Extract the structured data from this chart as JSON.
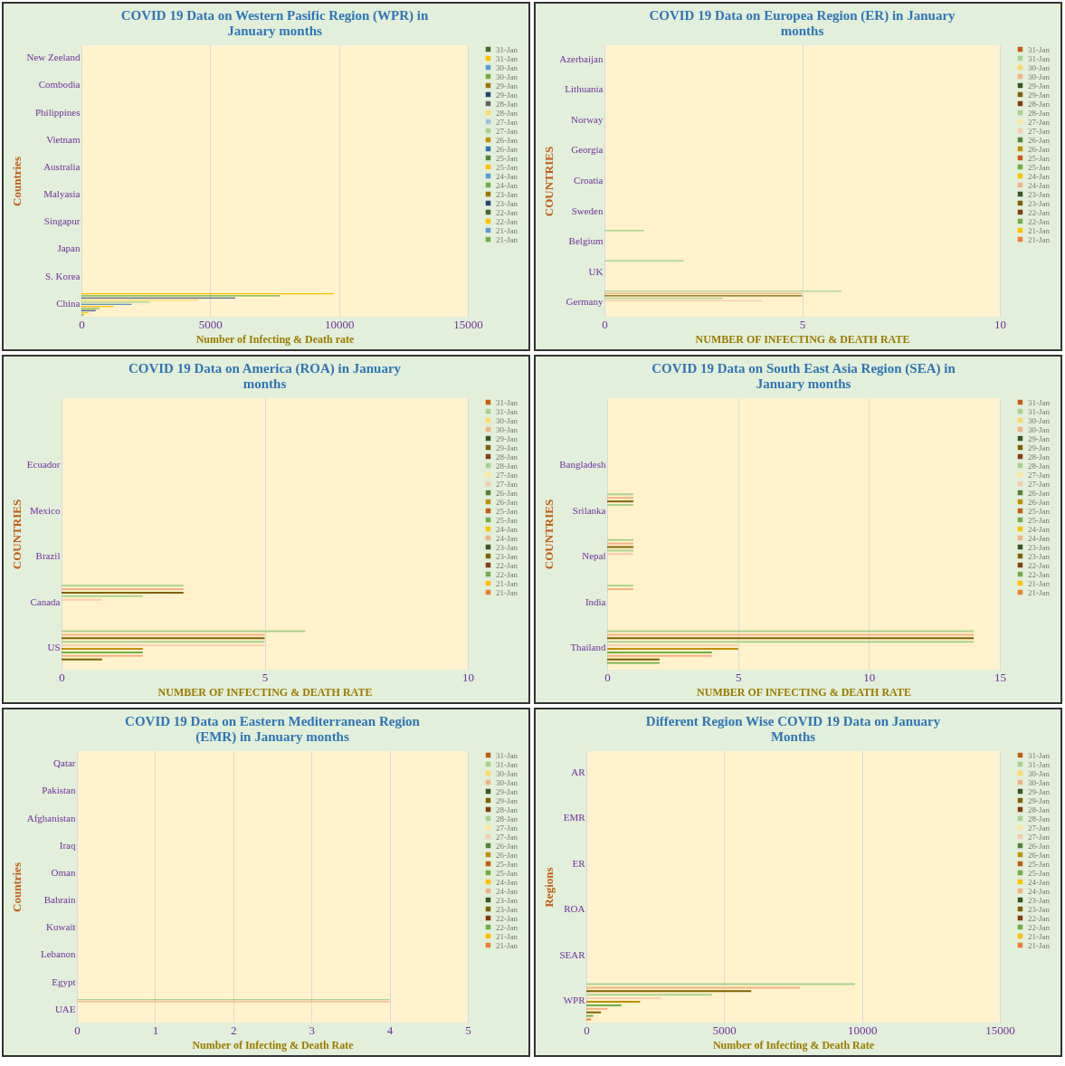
{
  "chart_data": [
    {
      "type": "bar",
      "orientation": "horizontal",
      "title": "COVID 19 Data on Western Pasific Region (WPR) in January months",
      "xlabel": "Number of Infecting & Death rate",
      "ylabel": "Countries",
      "categories": [
        "New Zeeland",
        "Combodia",
        "Philippines",
        "Vietnam",
        "Australia",
        "Malyasia",
        "Singapur",
        "Japan",
        "S. Korea",
        "China"
      ],
      "xlim": [
        0,
        15000
      ],
      "xticks": [
        0,
        5000,
        10000,
        15000
      ],
      "grid": "x",
      "legend": "right",
      "series": [
        {
          "name": "21-Jan",
          "color": "#70ad47",
          "values": [
            0,
            0,
            0,
            0,
            0,
            0,
            0,
            0,
            0,
            100
          ]
        },
        {
          "name": "21-Jan",
          "color": "#5b9bd5",
          "values": [
            0,
            0,
            0,
            0,
            0,
            0,
            0,
            0,
            0,
            0
          ]
        },
        {
          "name": "22-Jan",
          "color": "#ffc000",
          "values": [
            0,
            0,
            0,
            0,
            0,
            0,
            0,
            0,
            0,
            250
          ]
        },
        {
          "name": "22-Jan",
          "color": "#43682b",
          "values": [
            0,
            0,
            0,
            0,
            0,
            0,
            0,
            0,
            0,
            0
          ]
        },
        {
          "name": "23-Jan",
          "color": "#264478",
          "values": [
            0,
            0,
            0,
            0,
            0,
            0,
            0,
            0,
            0,
            550
          ]
        },
        {
          "name": "23-Jan",
          "color": "#997300",
          "values": [
            0,
            0,
            0,
            0,
            0,
            0,
            0,
            0,
            0,
            0
          ]
        },
        {
          "name": "24-Jan",
          "color": "#70ad47",
          "values": [
            0,
            0,
            0,
            0,
            0,
            0,
            0,
            0,
            0,
            700
          ]
        },
        {
          "name": "24-Jan",
          "color": "#5b9bd5",
          "values": [
            0,
            0,
            0,
            0,
            0,
            0,
            0,
            0,
            0,
            0
          ]
        },
        {
          "name": "25-Jan",
          "color": "#ffc000",
          "values": [
            0,
            0,
            0,
            0,
            0,
            0,
            0,
            0,
            0,
            1250
          ]
        },
        {
          "name": "25-Jan",
          "color": "#548235",
          "values": [
            0,
            0,
            0,
            0,
            0,
            0,
            0,
            0,
            0,
            0
          ]
        },
        {
          "name": "26-Jan",
          "color": "#2e75b6",
          "values": [
            0,
            0,
            0,
            0,
            0,
            0,
            0,
            0,
            0,
            1950
          ]
        },
        {
          "name": "26-Jan",
          "color": "#bf8f00",
          "values": [
            0,
            0,
            0,
            0,
            0,
            0,
            0,
            0,
            0,
            0
          ]
        },
        {
          "name": "27-Jan",
          "color": "#a9d18e",
          "values": [
            0,
            0,
            0,
            0,
            0,
            0,
            0,
            0,
            0,
            2650
          ]
        },
        {
          "name": "27-Jan",
          "color": "#9dc3e6",
          "values": [
            0,
            0,
            0,
            0,
            0,
            0,
            0,
            0,
            0,
            0
          ]
        },
        {
          "name": "28-Jan",
          "color": "#ffd966",
          "values": [
            0,
            0,
            0,
            0,
            0,
            0,
            0,
            0,
            0,
            4530
          ]
        },
        {
          "name": "28-Jan",
          "color": "#636363",
          "values": [
            0,
            0,
            0,
            0,
            0,
            0,
            0,
            0,
            0,
            0
          ]
        },
        {
          "name": "29-Jan",
          "color": "#264478",
          "values": [
            0,
            0,
            0,
            0,
            0,
            0,
            0,
            0,
            0,
            5970
          ]
        },
        {
          "name": "29-Jan",
          "color": "#997300",
          "values": [
            0,
            0,
            0,
            0,
            0,
            0,
            0,
            0,
            0,
            0
          ]
        },
        {
          "name": "30-Jan",
          "color": "#70ad47",
          "values": [
            0,
            0,
            0,
            0,
            0,
            0,
            0,
            0,
            0,
            7700
          ]
        },
        {
          "name": "30-Jan",
          "color": "#5b9bd5",
          "values": [
            0,
            0,
            0,
            0,
            0,
            0,
            0,
            0,
            0,
            0
          ]
        },
        {
          "name": "31-Jan",
          "color": "#ffc000",
          "values": [
            0,
            0,
            0,
            0,
            0,
            0,
            0,
            0,
            0,
            9800
          ]
        },
        {
          "name": "31-Jan",
          "color": "#43682b",
          "values": [
            0,
            0,
            0,
            0,
            0,
            0,
            0,
            0,
            0,
            0
          ]
        }
      ]
    },
    {
      "type": "bar",
      "orientation": "horizontal",
      "title": "COVID 19 Data on Europea Region (ER) in January months",
      "xlabel": "NUMBER OF INFECTING & DEATH RATE",
      "ylabel": "COUNTRIES",
      "categories": [
        "Azerbaijan",
        "Lithuania",
        "Norway",
        "Georgia",
        "Croatia",
        "Sweden",
        "Belgium",
        "UK",
        "Germany"
      ],
      "xlim": [
        0,
        10
      ],
      "xticks": [
        0,
        5,
        10
      ],
      "grid": "x",
      "legend": "right",
      "series": [
        {
          "name": "21-Jan",
          "color": "#ed7d31",
          "values": [
            0,
            0,
            0,
            0,
            0,
            0,
            0,
            0,
            0
          ]
        },
        {
          "name": "21-Jan",
          "color": "#ffc000",
          "values": [
            0,
            0,
            0,
            0,
            0,
            0,
            0,
            0,
            0
          ]
        },
        {
          "name": "22-Jan",
          "color": "#70ad47",
          "values": [
            0,
            0,
            0,
            0,
            0,
            0,
            0,
            0,
            0
          ]
        },
        {
          "name": "22-Jan",
          "color": "#843c0c",
          "values": [
            0,
            0,
            0,
            0,
            0,
            0,
            0,
            0,
            0
          ]
        },
        {
          "name": "23-Jan",
          "color": "#7f6000",
          "values": [
            0,
            0,
            0,
            0,
            0,
            0,
            0,
            0,
            0
          ]
        },
        {
          "name": "23-Jan",
          "color": "#375623",
          "values": [
            0,
            0,
            0,
            0,
            0,
            0,
            0,
            0,
            0
          ]
        },
        {
          "name": "24-Jan",
          "color": "#f4b183",
          "values": [
            0,
            0,
            0,
            0,
            0,
            0,
            0,
            0,
            0
          ]
        },
        {
          "name": "24-Jan",
          "color": "#ffc000",
          "values": [
            0,
            0,
            0,
            0,
            0,
            0,
            0,
            0,
            0
          ]
        },
        {
          "name": "25-Jan",
          "color": "#70ad47",
          "values": [
            0,
            0,
            0,
            0,
            0,
            0,
            0,
            0,
            0
          ]
        },
        {
          "name": "25-Jan",
          "color": "#c55a11",
          "values": [
            0,
            0,
            0,
            0,
            0,
            0,
            0,
            0,
            0
          ]
        },
        {
          "name": "26-Jan",
          "color": "#bf8f00",
          "values": [
            0,
            0,
            0,
            0,
            0,
            0,
            0,
            0,
            0
          ]
        },
        {
          "name": "26-Jan",
          "color": "#548235",
          "values": [
            0,
            0,
            0,
            0,
            0,
            0,
            0,
            0,
            0
          ]
        },
        {
          "name": "27-Jan",
          "color": "#f8cbad",
          "values": [
            0,
            0,
            0,
            0,
            0,
            0,
            0,
            0,
            4
          ]
        },
        {
          "name": "27-Jan",
          "color": "#ffe699",
          "values": [
            0,
            0,
            0,
            0,
            0,
            0,
            0,
            0,
            0
          ]
        },
        {
          "name": "28-Jan",
          "color": "#a9d18e",
          "values": [
            0,
            0,
            0,
            0,
            0,
            0,
            0,
            0,
            3
          ]
        },
        {
          "name": "28-Jan",
          "color": "#843c0c",
          "values": [
            0,
            0,
            0,
            0,
            0,
            0,
            0,
            0,
            0
          ]
        },
        {
          "name": "29-Jan",
          "color": "#7f6000",
          "values": [
            0,
            0,
            0,
            0,
            0,
            0,
            0,
            0,
            5
          ]
        },
        {
          "name": "29-Jan",
          "color": "#375623",
          "values": [
            0,
            0,
            0,
            0,
            0,
            0,
            0,
            0,
            0
          ]
        },
        {
          "name": "30-Jan",
          "color": "#f4b183",
          "values": [
            0,
            0,
            0,
            0,
            0,
            0,
            0,
            0,
            5
          ]
        },
        {
          "name": "30-Jan",
          "color": "#ffd966",
          "values": [
            0,
            0,
            0,
            0,
            0,
            0,
            0,
            0,
            0
          ]
        },
        {
          "name": "31-Jan",
          "color": "#a9d18e",
          "values": [
            0,
            0,
            0,
            0,
            0,
            0,
            1,
            2,
            6
          ]
        },
        {
          "name": "31-Jan",
          "color": "#c55a11",
          "values": [
            0,
            0,
            0,
            0,
            0,
            0,
            0,
            0,
            0
          ]
        }
      ]
    },
    {
      "type": "bar",
      "orientation": "horizontal",
      "title": "COVID 19 Data on America  (ROA) in January months",
      "xlabel": "NUMBER OF INFECTING & DEATH RATE",
      "ylabel": "COUNTRIES",
      "categories": [
        null,
        "Ecuador",
        "Mexico",
        "Brazil",
        "Canada",
        "US"
      ],
      "xlim": [
        0,
        10
      ],
      "xticks": [
        0,
        5,
        10
      ],
      "grid": "x",
      "legend": "right",
      "series": [
        {
          "name": "21-Jan",
          "color": "#ed7d31",
          "values": [
            0,
            0,
            0,
            0,
            0,
            0
          ]
        },
        {
          "name": "21-Jan",
          "color": "#ffc000",
          "values": [
            0,
            0,
            0,
            0,
            0,
            0
          ]
        },
        {
          "name": "22-Jan",
          "color": "#70ad47",
          "values": [
            0,
            0,
            0,
            0,
            0,
            0
          ]
        },
        {
          "name": "22-Jan",
          "color": "#843c0c",
          "values": [
            0,
            0,
            0,
            0,
            0,
            0
          ]
        },
        {
          "name": "23-Jan",
          "color": "#7f6000",
          "values": [
            0,
            0,
            0,
            0,
            0,
            1
          ]
        },
        {
          "name": "23-Jan",
          "color": "#375623",
          "values": [
            0,
            0,
            0,
            0,
            0,
            0
          ]
        },
        {
          "name": "24-Jan",
          "color": "#f4b183",
          "values": [
            0,
            0,
            0,
            0,
            0,
            2
          ]
        },
        {
          "name": "24-Jan",
          "color": "#ffc000",
          "values": [
            0,
            0,
            0,
            0,
            0,
            0
          ]
        },
        {
          "name": "25-Jan",
          "color": "#70ad47",
          "values": [
            0,
            0,
            0,
            0,
            0,
            2
          ]
        },
        {
          "name": "25-Jan",
          "color": "#c55a11",
          "values": [
            0,
            0,
            0,
            0,
            0,
            0
          ]
        },
        {
          "name": "26-Jan",
          "color": "#bf8f00",
          "values": [
            0,
            0,
            0,
            0,
            0,
            2
          ]
        },
        {
          "name": "26-Jan",
          "color": "#548235",
          "values": [
            0,
            0,
            0,
            0,
            0,
            0
          ]
        },
        {
          "name": "27-Jan",
          "color": "#f8cbad",
          "values": [
            0,
            0,
            0,
            0,
            1,
            5
          ]
        },
        {
          "name": "27-Jan",
          "color": "#ffe699",
          "values": [
            0,
            0,
            0,
            0,
            0,
            0
          ]
        },
        {
          "name": "28-Jan",
          "color": "#a9d18e",
          "values": [
            0,
            0,
            0,
            0,
            2,
            5
          ]
        },
        {
          "name": "28-Jan",
          "color": "#843c0c",
          "values": [
            0,
            0,
            0,
            0,
            0,
            0
          ]
        },
        {
          "name": "29-Jan",
          "color": "#7f6000",
          "values": [
            0,
            0,
            0,
            0,
            3,
            5
          ]
        },
        {
          "name": "29-Jan",
          "color": "#375623",
          "values": [
            0,
            0,
            0,
            0,
            0,
            0
          ]
        },
        {
          "name": "30-Jan",
          "color": "#f4b183",
          "values": [
            0,
            0,
            0,
            0,
            3,
            5
          ]
        },
        {
          "name": "30-Jan",
          "color": "#ffd966",
          "values": [
            0,
            0,
            0,
            0,
            0,
            0
          ]
        },
        {
          "name": "31-Jan",
          "color": "#a9d18e",
          "values": [
            0,
            0,
            0,
            0,
            3,
            6
          ]
        },
        {
          "name": "31-Jan",
          "color": "#c55a11",
          "values": [
            0,
            0,
            0,
            0,
            0,
            0
          ]
        }
      ]
    },
    {
      "type": "bar",
      "orientation": "horizontal",
      "title": "COVID 19 Data on South East Asia Region (SEA) in January months",
      "xlabel": "NUMBER OF INFECTING & DEATH RATE",
      "ylabel": "COUNTRIES",
      "categories": [
        null,
        "Bangladesh",
        "Srilanka",
        "Nepal",
        "India",
        "Thailand"
      ],
      "xlim": [
        0,
        15
      ],
      "xticks": [
        0,
        5,
        10,
        15
      ],
      "grid": "x",
      "legend": "right",
      "series": [
        {
          "name": "21-Jan",
          "color": "#ed7d31",
          "values": [
            0,
            0,
            0,
            0,
            0,
            0
          ]
        },
        {
          "name": "21-Jan",
          "color": "#ffc000",
          "values": [
            0,
            0,
            0,
            0,
            0,
            0
          ]
        },
        {
          "name": "22-Jan",
          "color": "#70ad47",
          "values": [
            0,
            0,
            0,
            0,
            0,
            2
          ]
        },
        {
          "name": "22-Jan",
          "color": "#843c0c",
          "values": [
            0,
            0,
            0,
            0,
            0,
            0
          ]
        },
        {
          "name": "23-Jan",
          "color": "#7f6000",
          "values": [
            0,
            0,
            0,
            0,
            0,
            2
          ]
        },
        {
          "name": "23-Jan",
          "color": "#375623",
          "values": [
            0,
            0,
            0,
            0,
            0,
            0
          ]
        },
        {
          "name": "24-Jan",
          "color": "#f4b183",
          "values": [
            0,
            0,
            0,
            0,
            0,
            4
          ]
        },
        {
          "name": "24-Jan",
          "color": "#ffc000",
          "values": [
            0,
            0,
            0,
            0,
            0,
            0
          ]
        },
        {
          "name": "25-Jan",
          "color": "#70ad47",
          "values": [
            0,
            0,
            0,
            0,
            0,
            4
          ]
        },
        {
          "name": "25-Jan",
          "color": "#c55a11",
          "values": [
            0,
            0,
            0,
            0,
            0,
            0
          ]
        },
        {
          "name": "26-Jan",
          "color": "#bf8f00",
          "values": [
            0,
            0,
            0,
            0,
            0,
            5
          ]
        },
        {
          "name": "26-Jan",
          "color": "#548235",
          "values": [
            0,
            0,
            0,
            0,
            0,
            0
          ]
        },
        {
          "name": "27-Jan",
          "color": "#f8cbad",
          "values": [
            0,
            0,
            0,
            1,
            0,
            5
          ]
        },
        {
          "name": "27-Jan",
          "color": "#ffe699",
          "values": [
            0,
            0,
            0,
            0,
            0,
            0
          ]
        },
        {
          "name": "28-Jan",
          "color": "#a9d18e",
          "values": [
            0,
            0,
            1,
            1,
            0,
            14
          ]
        },
        {
          "name": "28-Jan",
          "color": "#843c0c",
          "values": [
            0,
            0,
            0,
            0,
            0,
            0
          ]
        },
        {
          "name": "29-Jan",
          "color": "#7f6000",
          "values": [
            0,
            0,
            1,
            1,
            0,
            14
          ]
        },
        {
          "name": "29-Jan",
          "color": "#375623",
          "values": [
            0,
            0,
            0,
            0,
            0,
            0
          ]
        },
        {
          "name": "30-Jan",
          "color": "#f4b183",
          "values": [
            0,
            0,
            1,
            1,
            1,
            14
          ]
        },
        {
          "name": "30-Jan",
          "color": "#ffd966",
          "values": [
            0,
            0,
            0,
            0,
            0,
            0
          ]
        },
        {
          "name": "31-Jan",
          "color": "#a9d18e",
          "values": [
            0,
            0,
            1,
            1,
            1,
            14
          ]
        },
        {
          "name": "31-Jan",
          "color": "#c55a11",
          "values": [
            0,
            0,
            0,
            0,
            0,
            0
          ]
        }
      ]
    },
    {
      "type": "bar",
      "orientation": "horizontal",
      "title": "COVID 19 Data on Eastern Mediterranean Region (EMR) in January months",
      "xlabel": "Number of Infecting & Death Rate",
      "ylabel": "Countries",
      "categories": [
        "Qatar",
        "Pakistan",
        "Afghanistan",
        "Iraq",
        "Oman",
        "Bahrain",
        "Kuwait",
        "Lebanon",
        "Egypt",
        "UAE"
      ],
      "xlim": [
        0,
        5
      ],
      "xticks": [
        0,
        1,
        2,
        3,
        4,
        5
      ],
      "grid": "x",
      "legend": "right",
      "series": [
        {
          "name": "21-Jan",
          "color": "#ed7d31",
          "values": [
            0,
            0,
            0,
            0,
            0,
            0,
            0,
            0,
            0,
            0
          ]
        },
        {
          "name": "21-Jan",
          "color": "#ffc000",
          "values": [
            0,
            0,
            0,
            0,
            0,
            0,
            0,
            0,
            0,
            0
          ]
        },
        {
          "name": "22-Jan",
          "color": "#70ad47",
          "values": [
            0,
            0,
            0,
            0,
            0,
            0,
            0,
            0,
            0,
            0
          ]
        },
        {
          "name": "22-Jan",
          "color": "#843c0c",
          "values": [
            0,
            0,
            0,
            0,
            0,
            0,
            0,
            0,
            0,
            0
          ]
        },
        {
          "name": "23-Jan",
          "color": "#7f6000",
          "values": [
            0,
            0,
            0,
            0,
            0,
            0,
            0,
            0,
            0,
            0
          ]
        },
        {
          "name": "23-Jan",
          "color": "#375623",
          "values": [
            0,
            0,
            0,
            0,
            0,
            0,
            0,
            0,
            0,
            0
          ]
        },
        {
          "name": "24-Jan",
          "color": "#f4b183",
          "values": [
            0,
            0,
            0,
            0,
            0,
            0,
            0,
            0,
            0,
            0
          ]
        },
        {
          "name": "24-Jan",
          "color": "#ffc000",
          "values": [
            0,
            0,
            0,
            0,
            0,
            0,
            0,
            0,
            0,
            0
          ]
        },
        {
          "name": "25-Jan",
          "color": "#70ad47",
          "values": [
            0,
            0,
            0,
            0,
            0,
            0,
            0,
            0,
            0,
            0
          ]
        },
        {
          "name": "25-Jan",
          "color": "#c55a11",
          "values": [
            0,
            0,
            0,
            0,
            0,
            0,
            0,
            0,
            0,
            0
          ]
        },
        {
          "name": "26-Jan",
          "color": "#bf8f00",
          "values": [
            0,
            0,
            0,
            0,
            0,
            0,
            0,
            0,
            0,
            0
          ]
        },
        {
          "name": "26-Jan",
          "color": "#548235",
          "values": [
            0,
            0,
            0,
            0,
            0,
            0,
            0,
            0,
            0,
            0
          ]
        },
        {
          "name": "27-Jan",
          "color": "#f8cbad",
          "values": [
            0,
            0,
            0,
            0,
            0,
            0,
            0,
            0,
            0,
            0
          ]
        },
        {
          "name": "27-Jan",
          "color": "#ffe699",
          "values": [
            0,
            0,
            0,
            0,
            0,
            0,
            0,
            0,
            0,
            0
          ]
        },
        {
          "name": "28-Jan",
          "color": "#a9d18e",
          "values": [
            0,
            0,
            0,
            0,
            0,
            0,
            0,
            0,
            0,
            0
          ]
        },
        {
          "name": "28-Jan",
          "color": "#843c0c",
          "values": [
            0,
            0,
            0,
            0,
            0,
            0,
            0,
            0,
            0,
            0
          ]
        },
        {
          "name": "29-Jan",
          "color": "#7f6000",
          "values": [
            0,
            0,
            0,
            0,
            0,
            0,
            0,
            0,
            0,
            0
          ]
        },
        {
          "name": "29-Jan",
          "color": "#375623",
          "values": [
            0,
            0,
            0,
            0,
            0,
            0,
            0,
            0,
            0,
            0
          ]
        },
        {
          "name": "30-Jan",
          "color": "#f4b183",
          "values": [
            0,
            0,
            0,
            0,
            0,
            0,
            0,
            0,
            0,
            4
          ]
        },
        {
          "name": "30-Jan",
          "color": "#ffd966",
          "values": [
            0,
            0,
            0,
            0,
            0,
            0,
            0,
            0,
            0,
            0
          ]
        },
        {
          "name": "31-Jan",
          "color": "#a9d18e",
          "values": [
            0,
            0,
            0,
            0,
            0,
            0,
            0,
            0,
            0,
            4
          ]
        },
        {
          "name": "31-Jan",
          "color": "#c55a11",
          "values": [
            0,
            0,
            0,
            0,
            0,
            0,
            0,
            0,
            0,
            0
          ]
        }
      ]
    },
    {
      "type": "bar",
      "orientation": "horizontal",
      "title": "Different Region Wise COVID 19 Data on January Months",
      "xlabel": "Number of Infecting & Death Rate",
      "ylabel": "Regions",
      "categories": [
        "AR",
        "EMR",
        "ER",
        "ROA",
        "SEAR",
        "WPR"
      ],
      "xlim": [
        0,
        15000
      ],
      "xticks": [
        0,
        5000,
        10000,
        15000
      ],
      "grid": "x",
      "legend": "right",
      "series": [
        {
          "name": "21-Jan",
          "color": "#ed7d31",
          "values": [
            0,
            0,
            0,
            0,
            0,
            170
          ]
        },
        {
          "name": "21-Jan",
          "color": "#ffc000",
          "values": [
            0,
            0,
            0,
            0,
            0,
            0
          ]
        },
        {
          "name": "22-Jan",
          "color": "#70ad47",
          "values": [
            0,
            0,
            0,
            0,
            0,
            250
          ]
        },
        {
          "name": "22-Jan",
          "color": "#843c0c",
          "values": [
            0,
            0,
            0,
            0,
            0,
            0
          ]
        },
        {
          "name": "23-Jan",
          "color": "#7f6000",
          "values": [
            0,
            0,
            0,
            0,
            0,
            530
          ]
        },
        {
          "name": "23-Jan",
          "color": "#375623",
          "values": [
            0,
            0,
            0,
            0,
            0,
            0
          ]
        },
        {
          "name": "24-Jan",
          "color": "#f4b183",
          "values": [
            0,
            0,
            0,
            0,
            0,
            770
          ]
        },
        {
          "name": "24-Jan",
          "color": "#ffc000",
          "values": [
            0,
            0,
            0,
            0,
            0,
            0
          ]
        },
        {
          "name": "25-Jan",
          "color": "#70ad47",
          "values": [
            0,
            0,
            0,
            0,
            0,
            1270
          ]
        },
        {
          "name": "25-Jan",
          "color": "#c55a11",
          "values": [
            0,
            0,
            0,
            0,
            0,
            0
          ]
        },
        {
          "name": "26-Jan",
          "color": "#bf8f00",
          "values": [
            0,
            0,
            0,
            0,
            0,
            1950
          ]
        },
        {
          "name": "26-Jan",
          "color": "#548235",
          "values": [
            0,
            0,
            0,
            0,
            0,
            0
          ]
        },
        {
          "name": "27-Jan",
          "color": "#f8cbad",
          "values": [
            0,
            0,
            0,
            0,
            0,
            2700
          ]
        },
        {
          "name": "27-Jan",
          "color": "#ffe699",
          "values": [
            0,
            0,
            0,
            0,
            0,
            0
          ]
        },
        {
          "name": "28-Jan",
          "color": "#a9d18e",
          "values": [
            0,
            0,
            0,
            0,
            0,
            4550
          ]
        },
        {
          "name": "28-Jan",
          "color": "#843c0c",
          "values": [
            0,
            0,
            0,
            0,
            0,
            0
          ]
        },
        {
          "name": "29-Jan",
          "color": "#7f6000",
          "values": [
            0,
            0,
            0,
            0,
            0,
            5980
          ]
        },
        {
          "name": "29-Jan",
          "color": "#375623",
          "values": [
            0,
            0,
            0,
            0,
            0,
            0
          ]
        },
        {
          "name": "30-Jan",
          "color": "#f4b183",
          "values": [
            0,
            0,
            0,
            0,
            0,
            7750
          ]
        },
        {
          "name": "30-Jan",
          "color": "#ffd966",
          "values": [
            0,
            0,
            0,
            0,
            0,
            0
          ]
        },
        {
          "name": "31-Jan",
          "color": "#a9d18e",
          "values": [
            0,
            0,
            0,
            0,
            0,
            9750
          ]
        },
        {
          "name": "31-Jan",
          "color": "#c55a11",
          "values": [
            0,
            0,
            0,
            0,
            0,
            0
          ]
        }
      ]
    }
  ]
}
